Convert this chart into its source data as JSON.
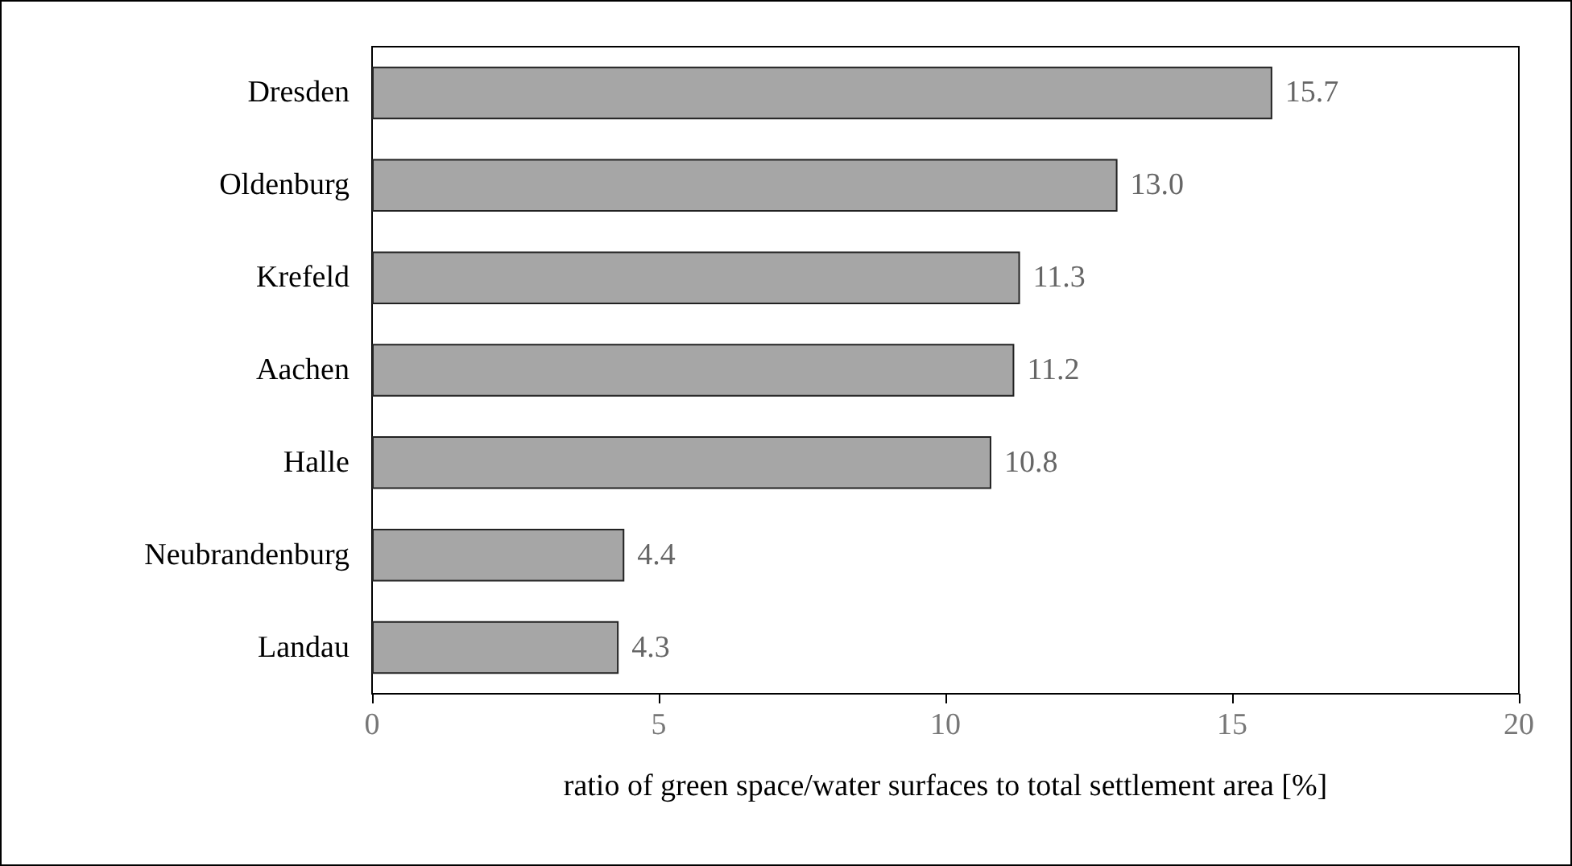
{
  "chart_data": {
    "type": "bar",
    "orientation": "horizontal",
    "xlabel": "ratio of green space/water surfaces to total settlement area [%]",
    "categories": [
      "Dresden",
      "Oldenburg",
      "Krefeld",
      "Aachen",
      "Halle",
      "Neubrandenburg",
      "Landau"
    ],
    "values": [
      15.7,
      13.0,
      11.3,
      11.2,
      10.8,
      4.4,
      4.3
    ],
    "value_labels": [
      "15.7",
      "13.0",
      "11.3",
      "11.2",
      "10.8",
      "4.4",
      "4.3"
    ],
    "color": "#a6a6a6",
    "xlim": [
      0,
      20
    ],
    "xticks": [
      0,
      5,
      10,
      15,
      20
    ],
    "grid": false
  }
}
